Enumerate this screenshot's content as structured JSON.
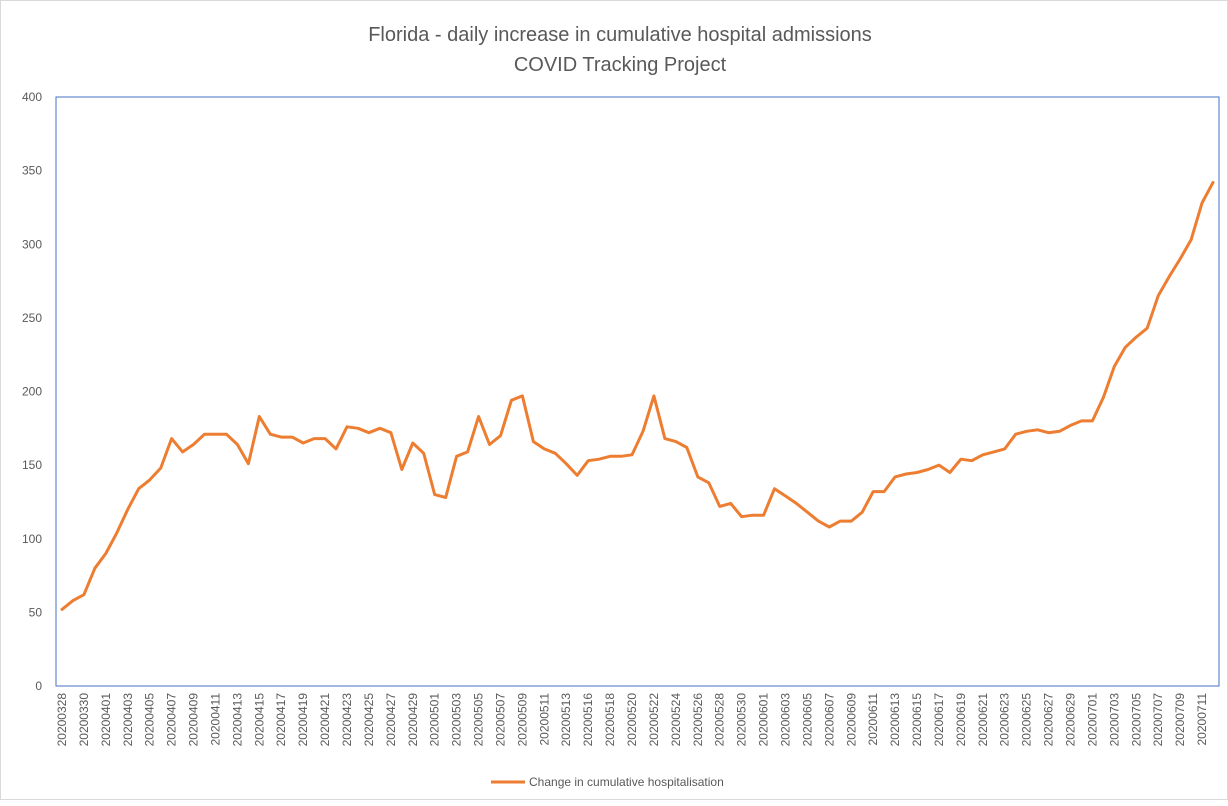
{
  "chart_data": {
    "type": "line",
    "title": "Florida - daily increase in cumulative hospital admissions",
    "subtitle": "COVID Tracking Project",
    "xlabel": "",
    "ylabel": "",
    "ylim": [
      0,
      400
    ],
    "yticks": [
      0,
      50,
      100,
      150,
      200,
      250,
      300,
      350,
      400
    ],
    "grid": false,
    "legend_position": "bottom",
    "series_color": "#ED7D31",
    "x": [
      "20200328",
      "20200329",
      "20200330",
      "20200331",
      "20200401",
      "20200402",
      "20200403",
      "20200404",
      "20200405",
      "20200406",
      "20200407",
      "20200408",
      "20200409",
      "20200410",
      "20200411",
      "20200412",
      "20200413",
      "20200414",
      "20200415",
      "20200416",
      "20200417",
      "20200418",
      "20200419",
      "20200420",
      "20200421",
      "20200422",
      "20200423",
      "20200424",
      "20200425",
      "20200426",
      "20200427",
      "20200428",
      "20200429",
      "20200430",
      "20200501",
      "20200502",
      "20200503",
      "20200504",
      "20200505",
      "20200506",
      "20200507",
      "20200508",
      "20200509",
      "20200510",
      "20200511",
      "20200512",
      "20200513",
      "20200514",
      "20200516",
      "20200517",
      "20200518",
      "20200519",
      "20200520",
      "20200521",
      "20200522",
      "20200523",
      "20200524",
      "20200525",
      "20200526",
      "20200527",
      "20200528",
      "20200529",
      "20200530",
      "20200531",
      "20200601",
      "20200602",
      "20200603",
      "20200604",
      "20200605",
      "20200606",
      "20200607",
      "20200608",
      "20200609",
      "20200610",
      "20200611",
      "20200612",
      "20200613",
      "20200614",
      "20200615",
      "20200616",
      "20200617",
      "20200618",
      "20200619",
      "20200620",
      "20200621",
      "20200622",
      "20200623",
      "20200624",
      "20200625",
      "20200626",
      "20200627",
      "20200628",
      "20200629",
      "20200630",
      "20200701",
      "20200702",
      "20200703",
      "20200704",
      "20200705",
      "20200706",
      "20200707",
      "20200708",
      "20200709",
      "20200710",
      "20200711",
      "20200712"
    ],
    "x_tick_labels": [
      "20200328",
      "20200330",
      "20200401",
      "20200403",
      "20200405",
      "20200407",
      "20200409",
      "20200411",
      "20200413",
      "20200415",
      "20200417",
      "20200419",
      "20200421",
      "20200423",
      "20200425",
      "20200427",
      "20200429",
      "20200501",
      "20200503",
      "20200505",
      "20200507",
      "20200509",
      "20200511",
      "20200513",
      "20200516",
      "20200518",
      "20200520",
      "20200522",
      "20200524",
      "20200526",
      "20200528",
      "20200530",
      "20200601",
      "20200603",
      "20200605",
      "20200607",
      "20200609",
      "20200611",
      "20200613",
      "20200615",
      "20200617",
      "20200619",
      "20200621",
      "20200623",
      "20200625",
      "20200627",
      "20200629",
      "20200701",
      "20200703",
      "20200705",
      "20200707",
      "20200709",
      "20200711"
    ],
    "series": [
      {
        "name": "Change in cumulative hospitalisation",
        "values": [
          52,
          58,
          62,
          80,
          90,
          104,
          120,
          134,
          140,
          148,
          168,
          159,
          164,
          171,
          171,
          171,
          164,
          151,
          183,
          171,
          169,
          169,
          165,
          168,
          168,
          161,
          176,
          175,
          172,
          175,
          172,
          147,
          165,
          158,
          130,
          128,
          156,
          159,
          183,
          164,
          170,
          194,
          197,
          166,
          161,
          158,
          151,
          143,
          153,
          154,
          156,
          156,
          157,
          173,
          197,
          168,
          166,
          162,
          142,
          138,
          122,
          124,
          115,
          116,
          116,
          134,
          129,
          124,
          118,
          112,
          108,
          112,
          112,
          118,
          132,
          132,
          142,
          144,
          145,
          147,
          150,
          145,
          154,
          153,
          157,
          159,
          161,
          171,
          173,
          174,
          172,
          173,
          177,
          180,
          180,
          196,
          217,
          230,
          237,
          243,
          265,
          278,
          290,
          303,
          328,
          342
        ]
      }
    ]
  }
}
